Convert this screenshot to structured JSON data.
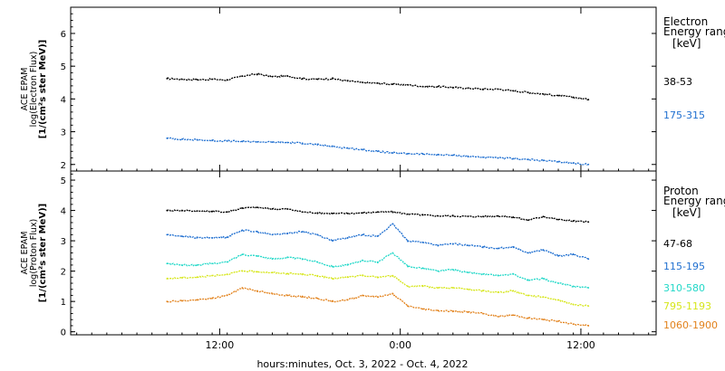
{
  "chart_data": [
    {
      "type": "line",
      "panel": "electron",
      "ylabel_lines": [
        "ACE EPAM",
        "log(Electron Flux)",
        "[1/(cm²s ster MeV)]"
      ],
      "ylim": [
        1.8,
        6.8
      ],
      "yticks": [
        2,
        3,
        4,
        5,
        6
      ],
      "legend_title": [
        "Electron",
        "Energy ranges"
      ],
      "legend_unit": "[keV]",
      "x_hours_since_start": [
        0,
        1,
        2,
        3,
        4,
        5,
        6,
        7,
        8,
        9,
        10,
        11,
        12,
        13,
        14,
        15,
        16,
        17,
        18,
        19,
        20,
        21,
        22,
        23,
        24,
        25,
        26,
        27,
        28
      ],
      "series": [
        {
          "name": "38-53",
          "color": "#000000",
          "values": [
            4.62,
            4.6,
            4.59,
            4.6,
            4.58,
            4.7,
            4.76,
            4.68,
            4.7,
            4.62,
            4.6,
            4.62,
            4.55,
            4.5,
            4.48,
            4.45,
            4.43,
            4.38,
            4.38,
            4.35,
            4.33,
            4.3,
            4.3,
            4.25,
            4.2,
            4.15,
            4.1,
            4.05,
            3.98
          ]
        },
        {
          "name": "175-315",
          "color": "#1f6fd0",
          "values": [
            2.8,
            2.77,
            2.75,
            2.73,
            2.72,
            2.7,
            2.69,
            2.68,
            2.67,
            2.65,
            2.6,
            2.55,
            2.5,
            2.45,
            2.4,
            2.35,
            2.33,
            2.32,
            2.3,
            2.28,
            2.25,
            2.22,
            2.2,
            2.18,
            2.15,
            2.12,
            2.08,
            2.04,
            2.0
          ]
        }
      ]
    },
    {
      "type": "line",
      "panel": "proton",
      "ylabel_lines": [
        "ACE EPAM",
        "log(Proton Flux)",
        "[1/(cm²s ster MeV)]"
      ],
      "ylim": [
        -0.1,
        5.3
      ],
      "yticks": [
        0,
        1,
        2,
        3,
        4,
        5
      ],
      "legend_title": [
        "Proton",
        "Energy ranges"
      ],
      "legend_unit": "[keV]",
      "x_hours_since_start": [
        0,
        1,
        2,
        3,
        4,
        5,
        6,
        7,
        8,
        9,
        10,
        11,
        12,
        13,
        14,
        15,
        16,
        17,
        18,
        19,
        20,
        21,
        22,
        23,
        24,
        25,
        26,
        27,
        28
      ],
      "series": [
        {
          "name": "47-68",
          "color": "#000000",
          "values": [
            4.0,
            4.0,
            3.98,
            3.97,
            3.95,
            4.08,
            4.1,
            4.05,
            4.05,
            3.95,
            3.92,
            3.9,
            3.9,
            3.92,
            3.95,
            3.95,
            3.88,
            3.85,
            3.82,
            3.82,
            3.8,
            3.8,
            3.82,
            3.78,
            3.68,
            3.8,
            3.7,
            3.65,
            3.62
          ]
        },
        {
          "name": "115-195",
          "color": "#1f6fd0",
          "values": [
            3.2,
            3.15,
            3.1,
            3.1,
            3.12,
            3.35,
            3.3,
            3.2,
            3.25,
            3.3,
            3.2,
            3.0,
            3.1,
            3.2,
            3.15,
            3.55,
            3.0,
            2.95,
            2.85,
            2.9,
            2.85,
            2.8,
            2.75,
            2.8,
            2.6,
            2.7,
            2.5,
            2.55,
            2.4
          ]
        },
        {
          "name": "310-580",
          "color": "#22d8c8",
          "values": [
            2.25,
            2.2,
            2.2,
            2.25,
            2.3,
            2.55,
            2.5,
            2.4,
            2.45,
            2.4,
            2.3,
            2.15,
            2.2,
            2.35,
            2.3,
            2.6,
            2.15,
            2.1,
            2.0,
            2.05,
            1.95,
            1.9,
            1.85,
            1.9,
            1.7,
            1.75,
            1.6,
            1.5,
            1.45
          ]
        },
        {
          "name": "795-1193",
          "color": "#d6e61a",
          "values": [
            1.75,
            1.78,
            1.8,
            1.85,
            1.9,
            2.0,
            1.98,
            1.95,
            1.92,
            1.9,
            1.85,
            1.75,
            1.8,
            1.85,
            1.8,
            1.85,
            1.5,
            1.5,
            1.45,
            1.45,
            1.4,
            1.35,
            1.3,
            1.35,
            1.2,
            1.15,
            1.05,
            0.9,
            0.85
          ]
        },
        {
          "name": "1060-1900",
          "color": "#e2821c",
          "values": [
            1.0,
            1.02,
            1.05,
            1.1,
            1.2,
            1.45,
            1.35,
            1.25,
            1.2,
            1.15,
            1.1,
            1.0,
            1.05,
            1.2,
            1.15,
            1.25,
            0.85,
            0.75,
            0.7,
            0.68,
            0.65,
            0.6,
            0.5,
            0.55,
            0.45,
            0.4,
            0.35,
            0.25,
            0.2
          ]
        }
      ]
    }
  ],
  "x_axis": {
    "tick_labels": [
      "12:00",
      "0:00",
      "12:00"
    ],
    "tick_label_hours": [
      3.5,
      15.5,
      27.5
    ],
    "range_hours": [
      -6.4,
      32.5
    ],
    "xlabel": "hours:minutes, Oct.  3, 2022 - Oct.  4, 2022"
  }
}
